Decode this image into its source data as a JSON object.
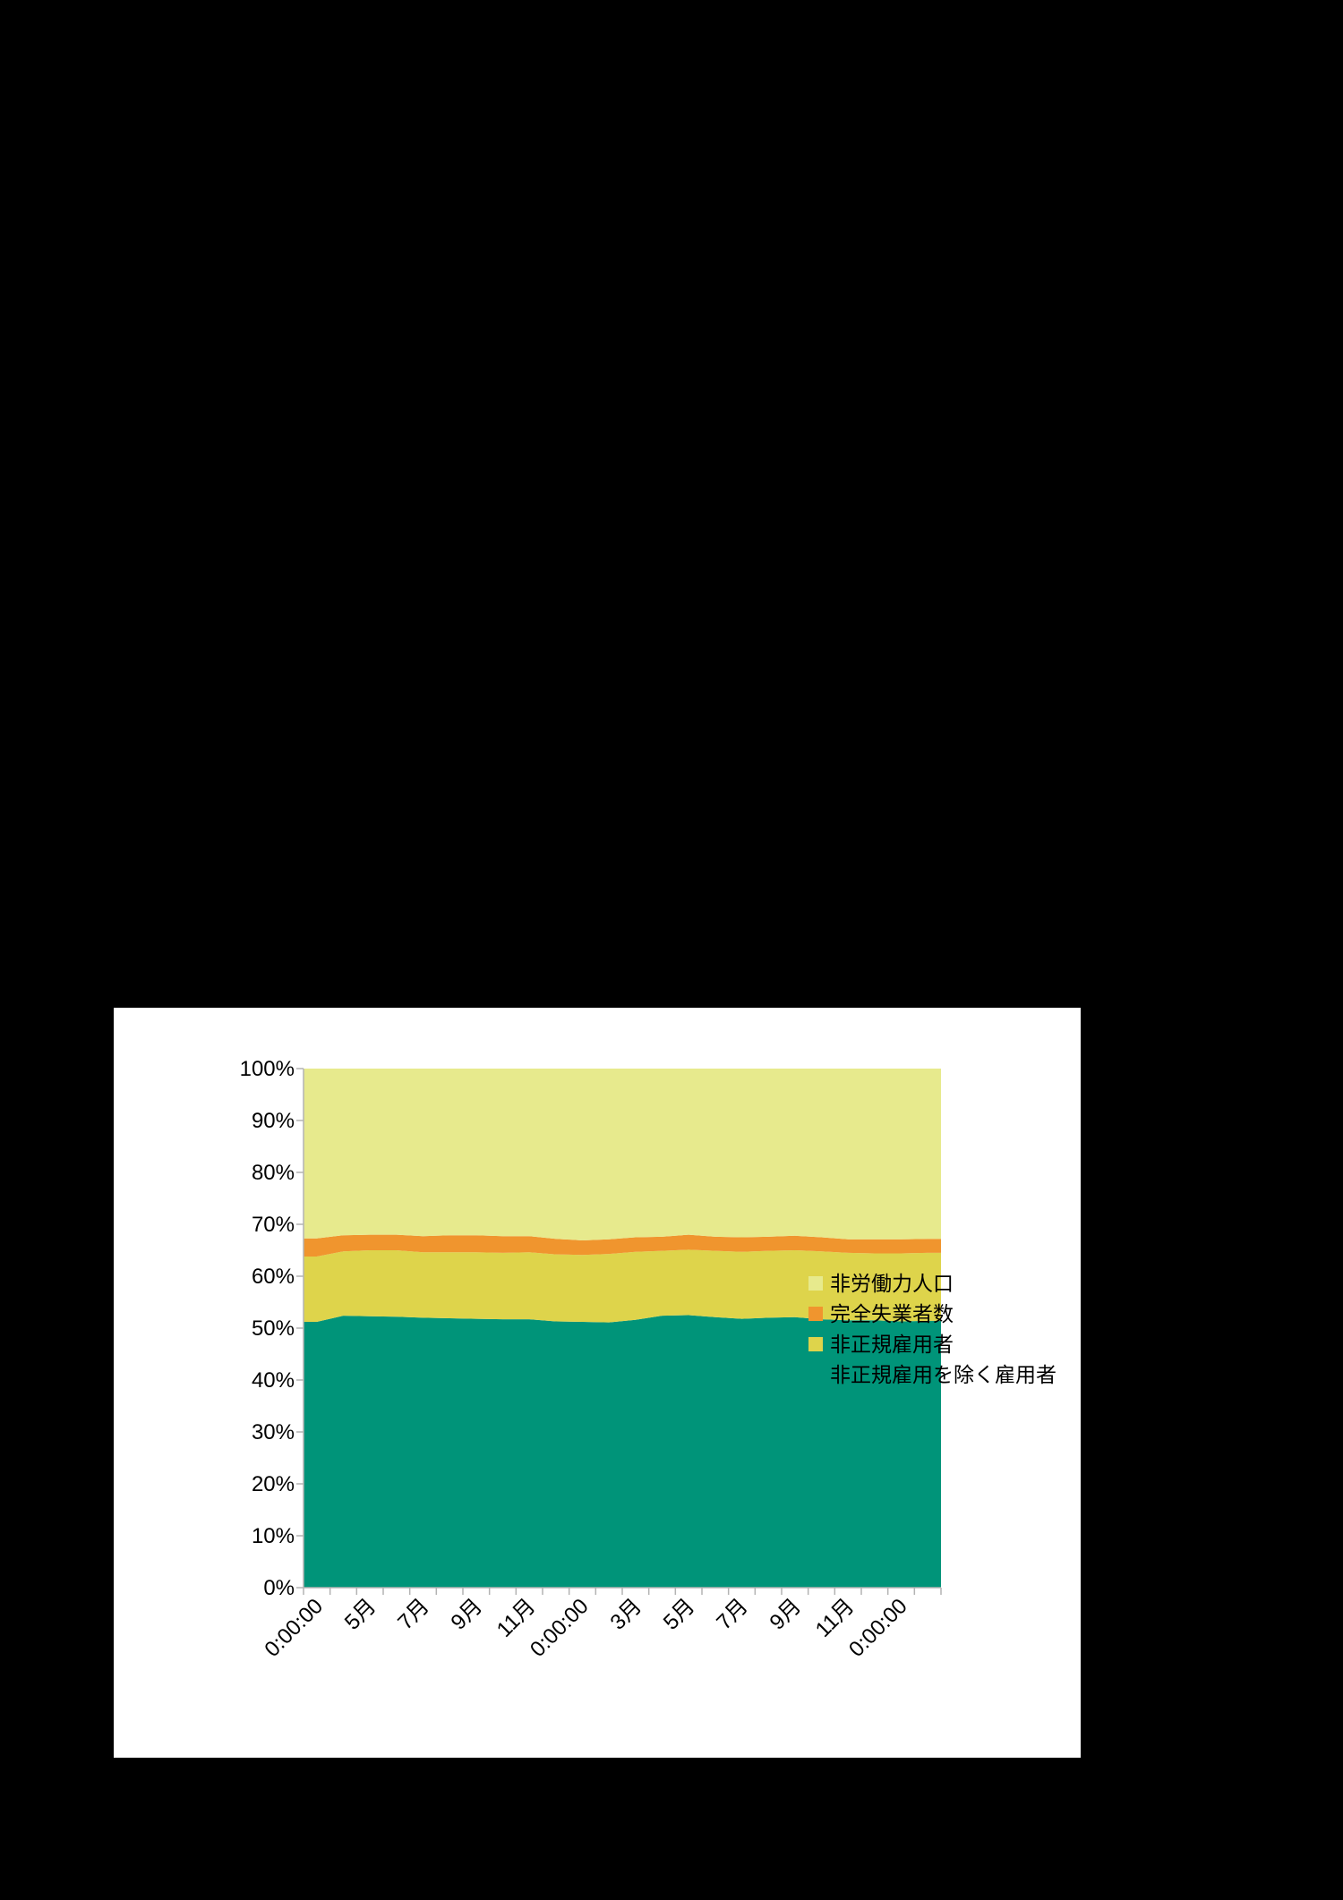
{
  "chart_data": {
    "type": "area",
    "stacked": "percent",
    "title": "",
    "xlabel": "",
    "ylabel": "",
    "ylim": [
      0,
      100
    ],
    "yticks": [
      "0%",
      "10%",
      "20%",
      "30%",
      "40%",
      "50%",
      "60%",
      "70%",
      "80%",
      "90%",
      "100%"
    ],
    "grid": false,
    "legend_position": "right",
    "categories": [
      "0:00:00",
      "",
      "5月",
      "",
      "7月",
      "",
      "9月",
      "",
      "11月",
      "",
      "0:00:00",
      "",
      "3月",
      "",
      "5月",
      "",
      "7月",
      "",
      "9月",
      "",
      "11月",
      "",
      "0:00:00",
      ""
    ],
    "series": [
      {
        "name": "非正規雇用を除く雇用者",
        "color": "#009479",
        "values": [
          51.2,
          52.4,
          52.3,
          52.2,
          52.0,
          51.9,
          51.8,
          51.7,
          51.7,
          51.3,
          51.2,
          51.1,
          51.6,
          52.4,
          52.5,
          52.1,
          51.8,
          52.0,
          52.1,
          51.7,
          51.5,
          51.5,
          51.3,
          51.4
        ]
      },
      {
        "name": "非正規雇用者",
        "color": "#ded44b",
        "values": [
          12.6,
          12.4,
          12.7,
          12.8,
          12.6,
          12.7,
          12.8,
          12.8,
          12.9,
          12.9,
          12.9,
          13.2,
          13.1,
          12.5,
          12.6,
          12.8,
          12.9,
          12.9,
          12.9,
          13.1,
          13.0,
          12.9,
          13.1,
          13.1
        ]
      },
      {
        "name": "完全失業者数",
        "color": "#f0952e",
        "values": [
          3.5,
          3.1,
          3.0,
          3.0,
          3.1,
          3.3,
          3.3,
          3.2,
          3.1,
          3.0,
          2.8,
          2.8,
          2.8,
          2.7,
          2.9,
          2.7,
          2.8,
          2.7,
          2.8,
          2.7,
          2.6,
          2.7,
          2.7,
          2.7
        ]
      },
      {
        "name": "非労働力人口",
        "color": "#e7ea8d",
        "values": [
          32.7,
          32.1,
          32.0,
          32.0,
          32.3,
          32.1,
          32.1,
          32.3,
          32.3,
          32.8,
          33.1,
          32.9,
          32.5,
          32.4,
          32.0,
          32.4,
          32.5,
          32.4,
          32.2,
          32.5,
          32.9,
          32.9,
          32.9,
          32.8
        ]
      }
    ],
    "legend_order": [
      "非労働力人口",
      "完全失業者数",
      "非正規雇用者",
      "非正規雇用を除く雇用者"
    ]
  }
}
